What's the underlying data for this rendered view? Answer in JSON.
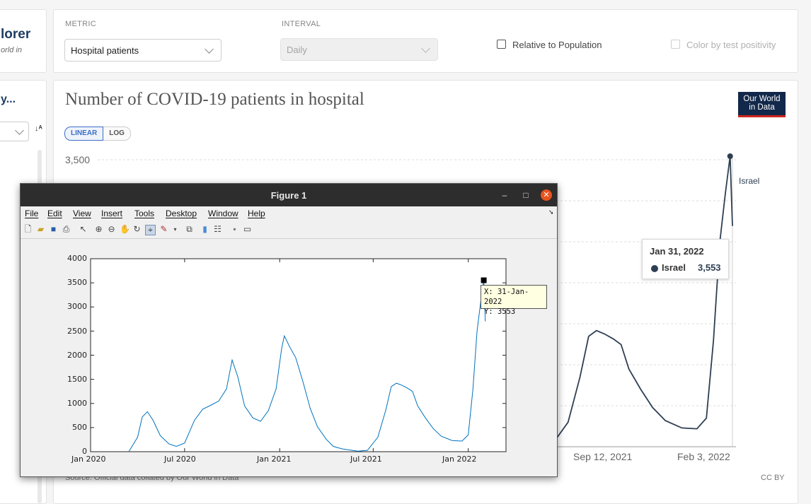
{
  "explorer": {
    "title_fragment": "lorer",
    "subtitle_fragment": "orld in",
    "side_heading_fragment": "y...",
    "sort_icon": "sort-alpha-icon"
  },
  "controls": {
    "metric_label": "METRIC",
    "metric_value": "Hospital patients",
    "interval_label": "INTERVAL",
    "interval_value": "Daily",
    "relative_label": "Relative to Population",
    "positivity_label": "Color by test positivity"
  },
  "owid_chart": {
    "title": "Number of COVID-19 patients in hospital",
    "logo_line1": "Our World",
    "logo_line2": "in Data",
    "linear_label": "LINEAR",
    "log_label": "LOG",
    "ytick_top": "3,500",
    "xtick_1": "Sep 12, 2021",
    "xtick_2": "Feb 3, 2022",
    "series_label": "Israel",
    "tooltip_date": "Jan 31, 2022",
    "tooltip_series": "Israel",
    "tooltip_value": "3,553",
    "source": "Source: Official data collated by Our World in Data",
    "license": "CC BY",
    "colors": {
      "line": "#2e3f52",
      "logo_bg": "#12284a",
      "logo_bar": "#ce261e",
      "accent": "#3d6ec7"
    }
  },
  "matlab": {
    "window_title": "Figure 1",
    "menu": [
      "File",
      "Edit",
      "View",
      "Insert",
      "Tools",
      "Desktop",
      "Window",
      "Help"
    ],
    "datatip_x": "X: 31-Jan-2022",
    "datatip_y": "Y: 3553"
  },
  "chart_data": {
    "type": "line",
    "title": "Number of COVID-19 patients in hospital",
    "series": [
      {
        "name": "Israel",
        "x": [
          "2020-03-15",
          "2020-04-01",
          "2020-04-10",
          "2020-04-20",
          "2020-05-01",
          "2020-05-15",
          "2020-06-01",
          "2020-06-15",
          "2020-07-01",
          "2020-07-20",
          "2020-08-05",
          "2020-08-20",
          "2020-09-05",
          "2020-09-20",
          "2020-10-01",
          "2020-10-12",
          "2020-10-25",
          "2020-11-10",
          "2020-11-25",
          "2020-12-10",
          "2020-12-25",
          "2021-01-05",
          "2021-01-10",
          "2021-01-20",
          "2021-02-01",
          "2021-02-15",
          "2021-03-01",
          "2021-03-15",
          "2021-04-01",
          "2021-04-15",
          "2021-05-01",
          "2021-06-01",
          "2021-06-20",
          "2021-07-10",
          "2021-07-25",
          "2021-08-05",
          "2021-08-15",
          "2021-08-25",
          "2021-09-05",
          "2021-09-15",
          "2021-09-25",
          "2021-10-10",
          "2021-10-25",
          "2021-11-10",
          "2021-12-01",
          "2021-12-20",
          "2022-01-01",
          "2022-01-10",
          "2022-01-18",
          "2022-01-25",
          "2022-01-31",
          "2022-02-03"
        ],
        "values": [
          0,
          300,
          720,
          830,
          650,
          330,
          160,
          110,
          180,
          650,
          880,
          960,
          1050,
          1300,
          1900,
          1550,
          950,
          700,
          630,
          850,
          1300,
          2150,
          2400,
          2180,
          1950,
          1450,
          900,
          520,
          260,
          110,
          60,
          10,
          30,
          300,
          850,
          1350,
          1420,
          1380,
          1320,
          1250,
          950,
          700,
          480,
          320,
          230,
          220,
          350,
          1300,
          2500,
          3100,
          3553,
          2700
        ]
      }
    ],
    "xlabel": "",
    "ylabel": "",
    "matlab_axes": {
      "xticks": [
        "Jan 2020",
        "Jul 2020",
        "Jan 2021",
        "Jul 2021",
        "Jan 2022"
      ],
      "yticks": [
        "0",
        "500",
        "1000",
        "1500",
        "2000",
        "2500",
        "3000",
        "3500",
        "4000"
      ],
      "xlim": [
        "2020-01-01",
        "2022-03-15"
      ],
      "ylim": [
        0,
        4000
      ]
    },
    "owid_axes": {
      "xlim": [
        "2021-06-25",
        "2022-02-03"
      ],
      "ylim": [
        0,
        3553
      ]
    },
    "highlight": {
      "x": "2022-01-31",
      "y": 3553
    }
  }
}
